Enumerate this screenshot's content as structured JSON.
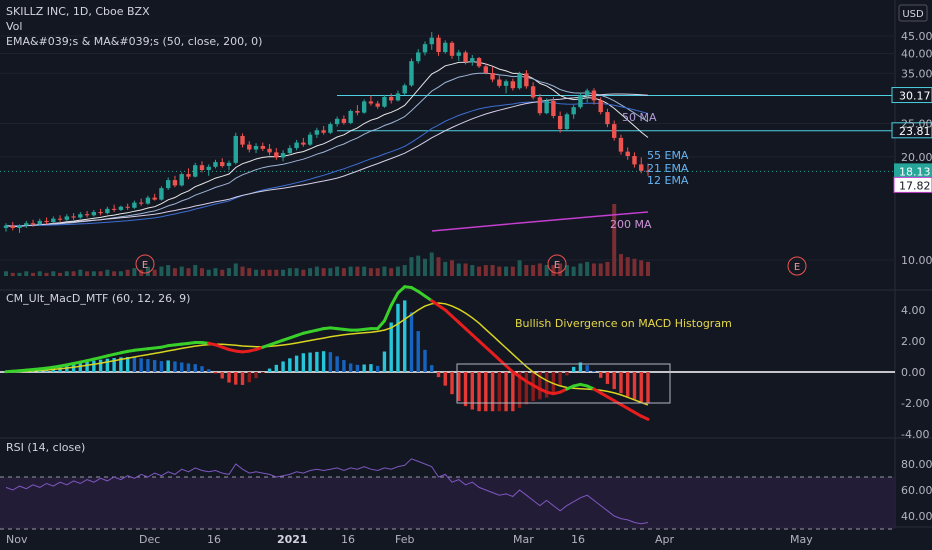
{
  "header": {
    "symbol_line": "SKILLZ INC, 1D, Cboe BZX",
    "vol_label": "Vol",
    "ema_line": "EMA&#039;s & MA&#039;s (50, close, 200, 0)",
    "currency_button": "USD"
  },
  "price_pane": {
    "axis_ticks": [
      "45.00",
      "40.00",
      "35.00",
      "25.00",
      "20.00",
      "10.00"
    ],
    "horizontal_levels": [
      {
        "value": "30.17"
      },
      {
        "value": "23.81"
      }
    ],
    "current_price": "18.13",
    "ma200_value": "17.82",
    "line_labels": {
      "ma50": "50 MA",
      "ema55": "55 EMA",
      "ema21": "21 EMA",
      "ema12": "12 EMA",
      "ma200": "200 MA"
    },
    "earnings_marker": "E"
  },
  "macd_pane": {
    "title": "CM_Ult_MacD_MTF (60, 12, 26, 9)",
    "annotation": "Bullish Divergence on MACD Histogram",
    "axis_ticks": [
      "4.00",
      "2.00",
      "0.00",
      "-2.00",
      "-4.00"
    ]
  },
  "rsi_pane": {
    "title": "RSI (14, close)",
    "axis_ticks": [
      "80.00",
      "60.00",
      "40.00"
    ]
  },
  "time_axis": {
    "labels": [
      "Nov",
      "Dec",
      "16",
      "2021",
      "16",
      "Feb",
      "Mar",
      "16",
      "Apr",
      "May"
    ]
  },
  "colors": {
    "background": "#131722",
    "up": "#26a69a",
    "down": "#ef5350",
    "macd_up": "#39d02a",
    "macd_down": "#e81e1e",
    "signal": "#d8d420",
    "ma200": "#c43ed0",
    "rsi": "#7e57c2",
    "level_line": "#4dd0e1"
  },
  "chart_data": {
    "type": "candlestick",
    "symbol": "SKILLZ INC",
    "interval": "1D",
    "y_axis_ticks": [
      10,
      20,
      25,
      35,
      40,
      45
    ],
    "x_tick_labels": [
      "Nov",
      "Dec",
      "16",
      "2021",
      "16",
      "Feb",
      "Mar",
      "16",
      "Apr",
      "May"
    ],
    "candles": [
      [
        12.4,
        12.8,
        12.1,
        12.6
      ],
      [
        12.6,
        12.9,
        12.2,
        12.4
      ],
      [
        12.4,
        12.7,
        12.0,
        12.6
      ],
      [
        12.6,
        13.0,
        12.4,
        12.8
      ],
      [
        12.8,
        13.1,
        12.5,
        12.7
      ],
      [
        12.7,
        13.2,
        12.6,
        13.0
      ],
      [
        13.0,
        13.3,
        12.7,
        12.9
      ],
      [
        12.9,
        13.4,
        12.8,
        13.2
      ],
      [
        13.2,
        13.5,
        12.9,
        13.1
      ],
      [
        13.1,
        13.6,
        13.0,
        13.4
      ],
      [
        13.4,
        13.7,
        13.1,
        13.3
      ],
      [
        13.3,
        13.8,
        13.2,
        13.6
      ],
      [
        13.6,
        13.9,
        13.3,
        13.5
      ],
      [
        13.5,
        14.0,
        13.4,
        13.8
      ],
      [
        13.8,
        14.1,
        13.5,
        13.7
      ],
      [
        13.7,
        14.3,
        13.6,
        14.1
      ],
      [
        14.1,
        14.5,
        13.8,
        14.0
      ],
      [
        14.0,
        14.4,
        13.9,
        14.3
      ],
      [
        14.3,
        14.6,
        14.0,
        14.2
      ],
      [
        14.2,
        14.9,
        14.1,
        14.7
      ],
      [
        14.7,
        15.1,
        14.4,
        14.6
      ],
      [
        14.6,
        15.4,
        14.5,
        15.2
      ],
      [
        15.2,
        15.6,
        14.9,
        15.0
      ],
      [
        15.0,
        16.4,
        14.9,
        16.2
      ],
      [
        16.2,
        17.4,
        16.0,
        17.1
      ],
      [
        17.1,
        17.6,
        16.3,
        16.5
      ],
      [
        16.5,
        18.0,
        16.4,
        17.8
      ],
      [
        17.8,
        18.5,
        17.2,
        17.5
      ],
      [
        17.5,
        19.2,
        17.4,
        18.9
      ],
      [
        18.9,
        19.4,
        18.0,
        18.3
      ],
      [
        18.3,
        19.0,
        17.6,
        18.7
      ],
      [
        18.7,
        19.6,
        18.5,
        19.3
      ],
      [
        19.3,
        19.8,
        18.6,
        18.8
      ],
      [
        18.8,
        19.5,
        18.3,
        19.2
      ],
      [
        19.2,
        23.5,
        19.0,
        23.0
      ],
      [
        23.0,
        23.4,
        21.3,
        21.7
      ],
      [
        21.7,
        22.2,
        20.6,
        21.0
      ],
      [
        21.0,
        21.9,
        20.5,
        21.5
      ],
      [
        21.5,
        22.0,
        20.8,
        21.1
      ],
      [
        21.1,
        21.8,
        20.2,
        20.6
      ],
      [
        20.6,
        21.2,
        19.6,
        19.9
      ],
      [
        19.9,
        20.9,
        19.4,
        20.5
      ],
      [
        20.5,
        21.6,
        20.2,
        21.2
      ],
      [
        21.2,
        22.4,
        20.9,
        22.0
      ],
      [
        22.0,
        22.7,
        21.4,
        21.7
      ],
      [
        21.7,
        23.6,
        21.5,
        23.2
      ],
      [
        23.2,
        24.3,
        22.7,
        23.9
      ],
      [
        23.9,
        24.6,
        23.2,
        23.5
      ],
      [
        23.5,
        25.2,
        23.3,
        24.9
      ],
      [
        24.9,
        26.2,
        24.5,
        25.8
      ],
      [
        25.8,
        26.4,
        24.8,
        25.1
      ],
      [
        25.1,
        27.5,
        24.9,
        27.2
      ],
      [
        27.2,
        28.3,
        26.4,
        26.9
      ],
      [
        26.9,
        29.4,
        26.7,
        29.0
      ],
      [
        29.0,
        30.2,
        28.2,
        28.6
      ],
      [
        28.6,
        29.1,
        27.6,
        28.0
      ],
      [
        28.0,
        30.3,
        27.8,
        29.9
      ],
      [
        29.9,
        30.6,
        28.6,
        29.2
      ],
      [
        29.2,
        31.2,
        29.0,
        30.6
      ],
      [
        30.6,
        32.7,
        30.3,
        32.3
      ],
      [
        32.3,
        38.7,
        32.0,
        38.0
      ],
      [
        38.0,
        41.2,
        37.4,
        40.3
      ],
      [
        40.3,
        43.4,
        39.5,
        42.6
      ],
      [
        42.6,
        46.2,
        41.0,
        44.5
      ],
      [
        44.5,
        45.4,
        39.4,
        40.4
      ],
      [
        40.4,
        43.7,
        40.0,
        43.0
      ],
      [
        43.0,
        43.5,
        38.6,
        39.4
      ],
      [
        39.4,
        41.0,
        38.1,
        40.3
      ],
      [
        40.3,
        40.8,
        37.2,
        37.8
      ],
      [
        37.8,
        39.6,
        36.9,
        38.8
      ],
      [
        38.8,
        39.1,
        36.3,
        36.7
      ],
      [
        36.7,
        37.5,
        34.8,
        35.1
      ],
      [
        35.1,
        36.6,
        33.0,
        33.6
      ],
      [
        33.6,
        34.5,
        31.8,
        32.2
      ],
      [
        32.2,
        33.6,
        30.6,
        33.2
      ],
      [
        33.2,
        33.8,
        31.2,
        31.7
      ],
      [
        31.7,
        35.4,
        31.4,
        35.0
      ],
      [
        35.0,
        35.8,
        31.6,
        32.1
      ],
      [
        32.1,
        33.0,
        29.4,
        29.8
      ],
      [
        29.8,
        30.5,
        26.4,
        26.8
      ],
      [
        26.8,
        29.6,
        26.6,
        29.1
      ],
      [
        29.1,
        29.9,
        25.9,
        26.3
      ],
      [
        26.3,
        27.1,
        23.5,
        24.1
      ],
      [
        24.1,
        26.9,
        23.9,
        26.6
      ],
      [
        26.6,
        28.3,
        25.8,
        27.9
      ],
      [
        27.9,
        30.7,
        27.6,
        30.2
      ],
      [
        30.2,
        31.6,
        28.8,
        31.2
      ],
      [
        31.2,
        31.7,
        28.4,
        29.2
      ],
      [
        29.2,
        29.8,
        26.6,
        27.0
      ],
      [
        27.0,
        27.6,
        24.4,
        24.9
      ],
      [
        24.9,
        25.5,
        22.3,
        22.7
      ],
      [
        22.7,
        23.2,
        20.3,
        20.7
      ],
      [
        20.7,
        21.3,
        19.6,
        20.1
      ],
      [
        20.1,
        20.6,
        18.6,
        19.0
      ],
      [
        19.0,
        19.9,
        17.9,
        18.2
      ],
      [
        18.2,
        19.1,
        17.6,
        18.13
      ]
    ],
    "volume": [
      3,
      2,
      2,
      3,
      2,
      3,
      2,
      3,
      2,
      3,
      3,
      4,
      3,
      3,
      3,
      4,
      3,
      3,
      4,
      5,
      4,
      6,
      4,
      6,
      7,
      5,
      6,
      5,
      7,
      5,
      4,
      5,
      4,
      5,
      8,
      6,
      5,
      4,
      4,
      4,
      4,
      4,
      5,
      5,
      4,
      5,
      6,
      5,
      5,
      6,
      5,
      6,
      6,
      6,
      5,
      5,
      6,
      5,
      6,
      7,
      12,
      13,
      11,
      15,
      12,
      9,
      10,
      8,
      8,
      7,
      6,
      7,
      7,
      6,
      6,
      6,
      10,
      7,
      7,
      8,
      7,
      7,
      8,
      7,
      6,
      8,
      9,
      8,
      8,
      9,
      46,
      14,
      12,
      11,
      10,
      9
    ],
    "macd": [
      0.02,
      0.05,
      0.08,
      0.12,
      0.16,
      0.2,
      0.25,
      0.31,
      0.38,
      0.46,
      0.55,
      0.64,
      0.73,
      0.83,
      0.93,
      1.04,
      1.14,
      1.24,
      1.33,
      1.4,
      1.45,
      1.5,
      1.55,
      1.6,
      1.7,
      1.75,
      1.8,
      1.85,
      1.9,
      1.9,
      1.85,
      1.75,
      1.6,
      1.45,
      1.35,
      1.3,
      1.35,
      1.45,
      1.6,
      1.75,
      1.9,
      2.05,
      2.2,
      2.35,
      2.5,
      2.6,
      2.7,
      2.8,
      2.85,
      2.8,
      2.75,
      2.7,
      2.7,
      2.75,
      2.8,
      2.8,
      3.3,
      4.3,
      5.1,
      5.5,
      5.45,
      5.2,
      4.9,
      4.6,
      4.3,
      4.0,
      3.6,
      3.2,
      2.8,
      2.4,
      2.0,
      1.6,
      1.2,
      0.8,
      0.4,
      0.0,
      -0.3,
      -0.6,
      -0.85,
      -1.1,
      -1.3,
      -1.4,
      -1.3,
      -1.1,
      -0.9,
      -0.8,
      -0.9,
      -1.1,
      -1.35,
      -1.6,
      -1.85,
      -2.1,
      -2.35,
      -2.6,
      -2.85,
      -3.05
    ],
    "signal": [
      0.0,
      0.01,
      0.03,
      0.05,
      0.07,
      0.1,
      0.13,
      0.17,
      0.21,
      0.26,
      0.31,
      0.37,
      0.43,
      0.5,
      0.57,
      0.65,
      0.73,
      0.81,
      0.89,
      0.97,
      1.05,
      1.12,
      1.2,
      1.28,
      1.36,
      1.44,
      1.52,
      1.6,
      1.67,
      1.73,
      1.77,
      1.79,
      1.79,
      1.76,
      1.72,
      1.68,
      1.65,
      1.63,
      1.63,
      1.65,
      1.69,
      1.74,
      1.8,
      1.87,
      1.95,
      2.03,
      2.11,
      2.19,
      2.27,
      2.34,
      2.4,
      2.45,
      2.49,
      2.53,
      2.57,
      2.62,
      2.7,
      2.85,
      3.1,
      3.4,
      3.7,
      4.0,
      4.25,
      4.4,
      4.45,
      4.4,
      4.25,
      4.05,
      3.8,
      3.5,
      3.15,
      2.75,
      2.35,
      1.95,
      1.55,
      1.15,
      0.75,
      0.35,
      0.0,
      -0.3,
      -0.55,
      -0.75,
      -0.9,
      -1.0,
      -1.05,
      -1.08,
      -1.1,
      -1.13,
      -1.18,
      -1.25,
      -1.35,
      -1.48,
      -1.63,
      -1.8,
      -1.97,
      -2.12
    ],
    "rsi": [
      62,
      60,
      63,
      61,
      64,
      62,
      65,
      63,
      66,
      64,
      67,
      65,
      68,
      66,
      69,
      67,
      70,
      68,
      71,
      69,
      72,
      70,
      73,
      71,
      74,
      72,
      76,
      74,
      77,
      75,
      74,
      75,
      73,
      72,
      80,
      76,
      73,
      74,
      73,
      72,
      70,
      71,
      72,
      74,
      73,
      75,
      76,
      75,
      76,
      77,
      75,
      77,
      76,
      78,
      76,
      75,
      77,
      76,
      78,
      79,
      84,
      82,
      80,
      78,
      70,
      72,
      66,
      68,
      64,
      66,
      62,
      60,
      58,
      56,
      57,
      55,
      60,
      56,
      52,
      48,
      52,
      48,
      44,
      48,
      51,
      54,
      56,
      52,
      48,
      44,
      40,
      38,
      37,
      35,
      34,
      35
    ]
  }
}
